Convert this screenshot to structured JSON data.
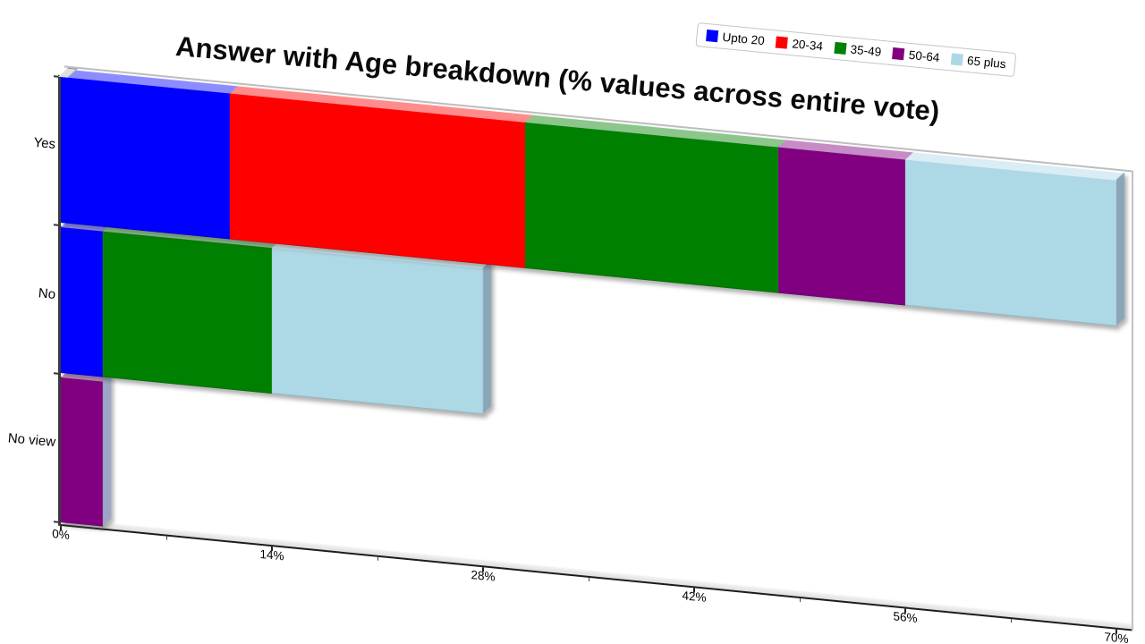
{
  "chart_data": {
    "type": "bar",
    "stacked": true,
    "orientation": "horizontal",
    "title": "Answer with Age breakdown (% values across entire vote)",
    "categories": [
      "Yes",
      "No",
      "No view"
    ],
    "series": [
      {
        "name": "Upto 20",
        "color": "#0000ff",
        "values": [
          11.2,
          2.8,
          0
        ]
      },
      {
        "name": "20-34",
        "color": "#ff0000",
        "values": [
          19.6,
          0,
          0
        ]
      },
      {
        "name": "35-49",
        "color": "#008000",
        "values": [
          16.8,
          11.2,
          0
        ]
      },
      {
        "name": "50-64",
        "color": "#800080",
        "values": [
          8.4,
          0,
          2.8
        ]
      },
      {
        "name": "65 plus",
        "color": "#add8e6",
        "values": [
          14.0,
          14.0,
          0
        ]
      }
    ],
    "category_totals": [
      70.0,
      28.0,
      2.8
    ],
    "xlabel": "",
    "ylabel": "",
    "xlim": [
      0,
      70
    ],
    "x_ticks": [
      "0%",
      "14%",
      "28%",
      "42%",
      "56%",
      "70%"
    ],
    "x_tick_values": [
      0,
      14,
      28,
      42,
      56,
      70
    ],
    "minor_tick_step": 7,
    "grid": false,
    "legend_position": "top-right",
    "style": "3d-oblique",
    "background": "#ffffff",
    "axis_color": "#1c1c1c"
  }
}
